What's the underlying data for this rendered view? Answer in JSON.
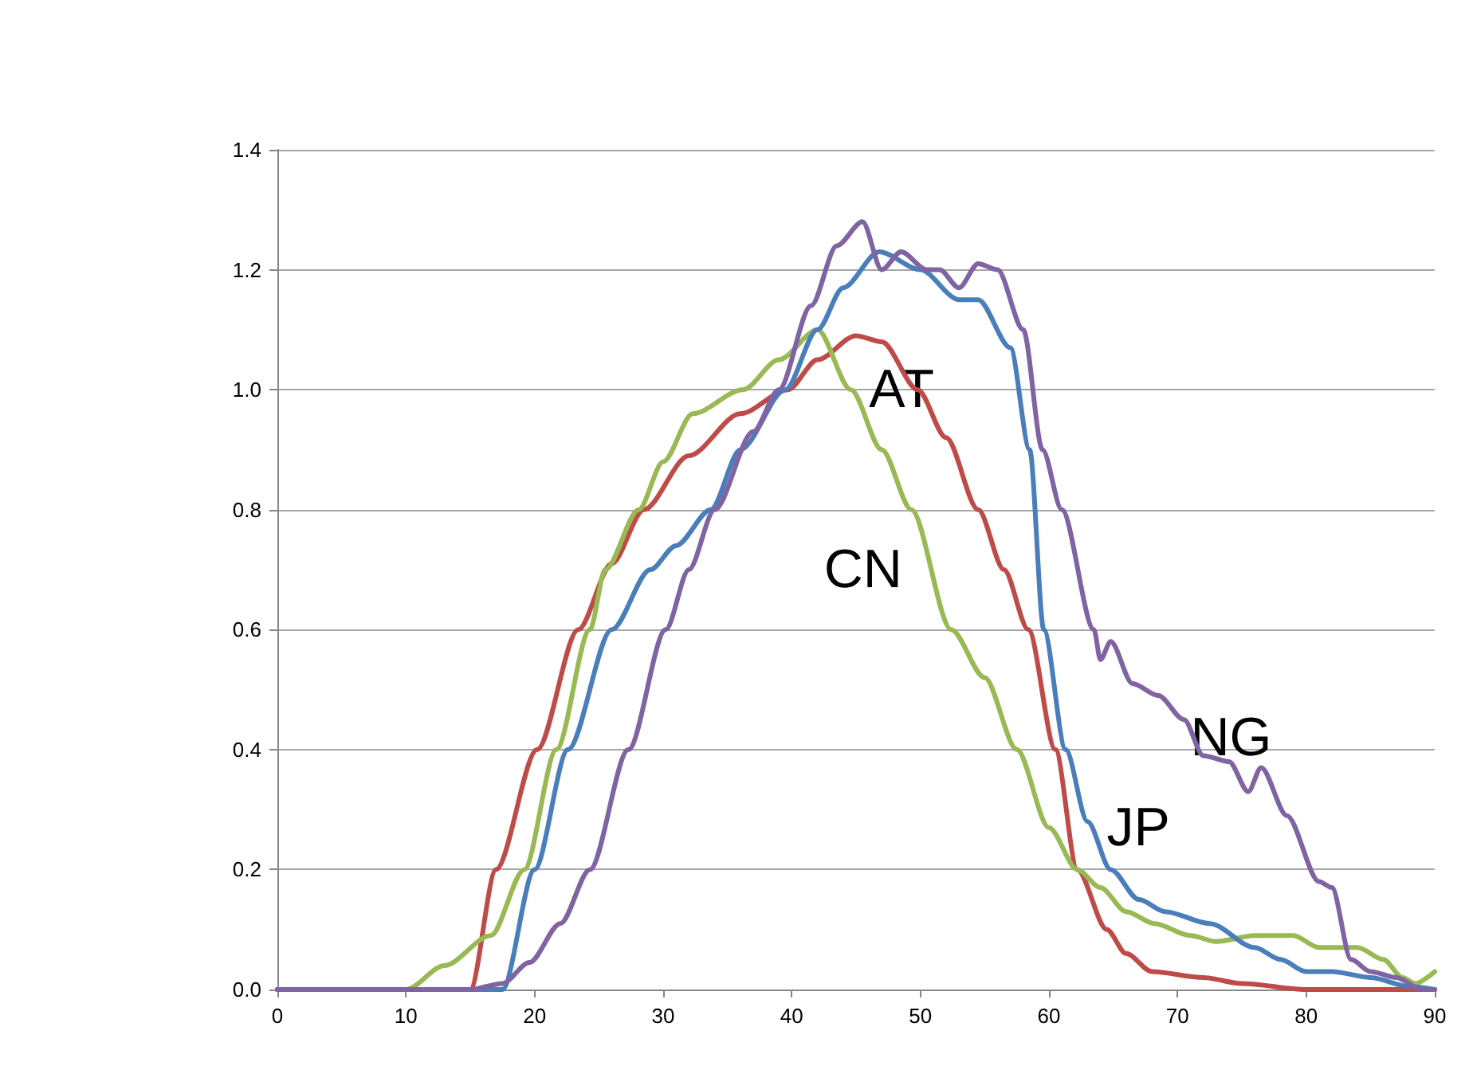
{
  "chart_data": {
    "type": "line",
    "xlim": [
      0,
      90
    ],
    "xticks": [
      0,
      10,
      20,
      30,
      40,
      50,
      60,
      70,
      80,
      90
    ],
    "ylim": [
      0,
      1.4
    ],
    "yticks": [
      {
        "value": 0,
        "label": "0.0"
      },
      {
        "value": 0.2,
        "label": "0.2"
      },
      {
        "value": 0.4,
        "label": "0.4"
      },
      {
        "value": 0.6,
        "label": "0.6"
      },
      {
        "value": 0.8,
        "label": "0.8"
      },
      {
        "value": 1.0,
        "label": "1.0"
      },
      {
        "value": 1.2,
        "label": "1.2"
      },
      {
        "value": 1.4,
        "label": "1.4"
      }
    ],
    "grid": "y",
    "legend": false,
    "marker": "none",
    "line_style": "solid",
    "series": [
      {
        "name": "AT",
        "color": "#be4b48",
        "x": [
          0,
          10,
          15,
          17,
          20.2,
          23.4,
          26,
          28.5,
          32,
          36,
          39.7,
          42,
          45,
          47,
          49.8,
          52,
          54.5,
          56.5,
          58.4,
          60.5,
          62.2,
          64.5,
          66,
          68,
          72,
          75,
          80,
          85,
          90
        ],
        "values": [
          0,
          0,
          0,
          0.2,
          0.4,
          0.6,
          0.71,
          0.8,
          0.89,
          0.96,
          1.0,
          1.05,
          1.09,
          1.08,
          1.0,
          0.92,
          0.8,
          0.7,
          0.6,
          0.4,
          0.2,
          0.1,
          0.06,
          0.03,
          0.02,
          0.01,
          0,
          0,
          0
        ]
      },
      {
        "name": "CN",
        "color": "#98b954",
        "x": [
          0,
          10,
          13,
          16.6,
          19.2,
          21.7,
          24.3,
          25.5,
          28.1,
          30,
          32.3,
          36.2,
          39,
          42,
          44.6,
          47,
          49.3,
          52.4,
          55,
          57.5,
          60,
          62.2,
          64,
          66,
          68.2,
          71,
          73,
          76,
          79,
          81,
          84,
          86,
          87.5,
          88.5,
          90
        ],
        "values": [
          0,
          0,
          0.04,
          0.09,
          0.2,
          0.4,
          0.6,
          0.7,
          0.8,
          0.88,
          0.96,
          1.0,
          1.05,
          1.1,
          1.0,
          0.9,
          0.8,
          0.6,
          0.52,
          0.4,
          0.27,
          0.2,
          0.17,
          0.13,
          0.11,
          0.09,
          0.08,
          0.09,
          0.09,
          0.07,
          0.07,
          0.05,
          0.02,
          0.01,
          0.03
        ]
      },
      {
        "name": "JP",
        "color": "#4a7ebb",
        "x": [
          0,
          10,
          17.5,
          20,
          22.6,
          26,
          29,
          31,
          33.7,
          36,
          39.5,
          42,
          44,
          46.8,
          50,
          53,
          54.5,
          57,
          58.5,
          59.6,
          61.3,
          63,
          64.8,
          67,
          69,
          72.5,
          76,
          78,
          80,
          82,
          85,
          88,
          90
        ],
        "values": [
          0,
          0,
          0,
          0.2,
          0.4,
          0.6,
          0.7,
          0.74,
          0.8,
          0.9,
          1.0,
          1.1,
          1.17,
          1.23,
          1.2,
          1.15,
          1.15,
          1.07,
          0.9,
          0.6,
          0.4,
          0.28,
          0.2,
          0.15,
          0.13,
          0.11,
          0.07,
          0.05,
          0.03,
          0.03,
          0.02,
          0.005,
          0
        ]
      },
      {
        "name": "NG",
        "color": "#7f63a2",
        "x": [
          0,
          10,
          15,
          17.5,
          19.6,
          22,
          24.3,
          27.3,
          30.2,
          32,
          34,
          37,
          39,
          41.5,
          43.5,
          45.5,
          47,
          48.5,
          50.5,
          51.5,
          53,
          54.5,
          56,
          58,
          59.5,
          61,
          63.5,
          64,
          64.8,
          66.5,
          68.5,
          70.5,
          72,
          74,
          75.5,
          76.5,
          78.5,
          81,
          82,
          83.5,
          85,
          87,
          89,
          90
        ],
        "values": [
          0,
          0,
          0,
          0.01,
          0.045,
          0.11,
          0.2,
          0.4,
          0.6,
          0.7,
          0.8,
          0.93,
          1.0,
          1.14,
          1.24,
          1.28,
          1.2,
          1.23,
          1.2,
          1.2,
          1.17,
          1.21,
          1.2,
          1.1,
          0.9,
          0.8,
          0.6,
          0.55,
          0.58,
          0.51,
          0.49,
          0.45,
          0.39,
          0.38,
          0.33,
          0.37,
          0.29,
          0.18,
          0.17,
          0.05,
          0.03,
          0.02,
          0,
          0
        ]
      }
    ]
  }
}
